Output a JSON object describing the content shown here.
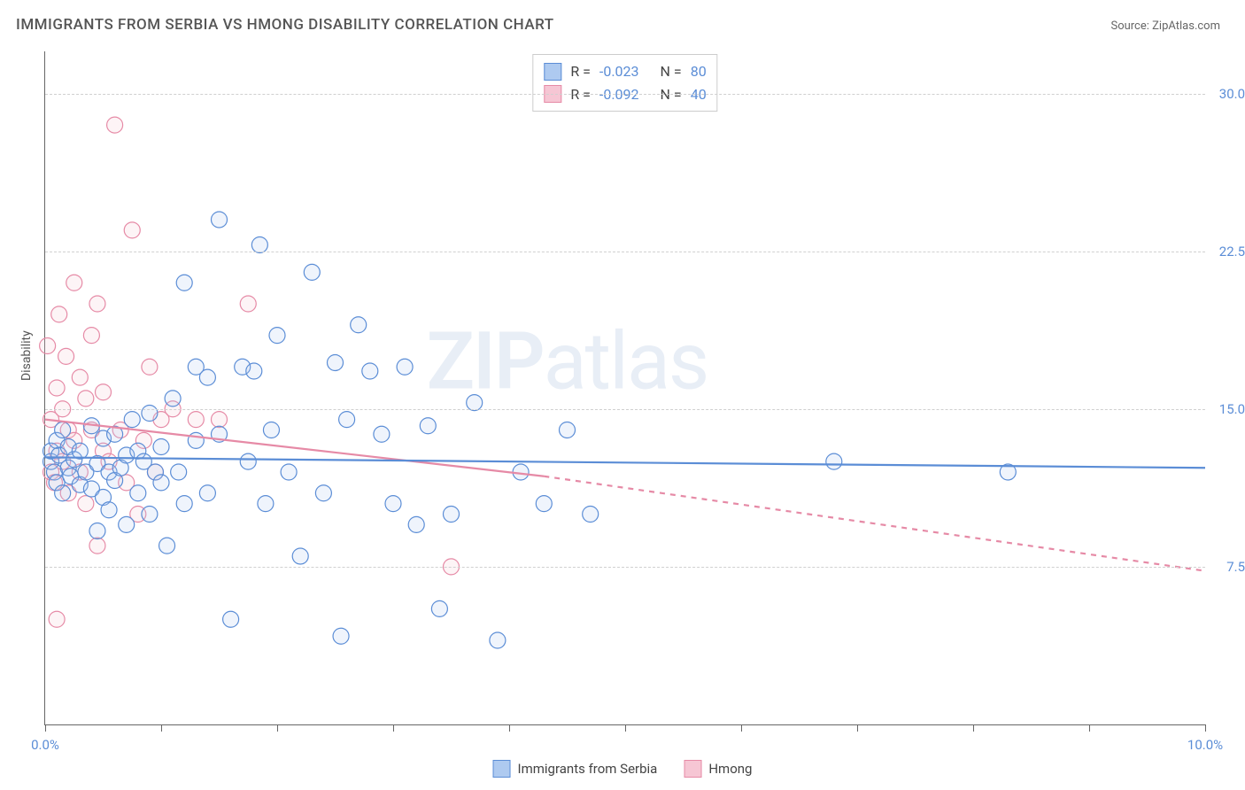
{
  "title": "IMMIGRANTS FROM SERBIA VS HMONG DISABILITY CORRELATION CHART",
  "source_prefix": "Source: ",
  "source_name": "ZipAtlas.com",
  "watermark_main": "ZIP",
  "watermark_sub": "atlas",
  "y_axis_label": "Disability",
  "chart": {
    "type": "scatter",
    "background_color": "#ffffff",
    "grid_color": "#d0d0d0",
    "axis_color": "#666666",
    "marker_radius": 9,
    "marker_stroke_width": 1.2,
    "marker_fill_opacity": 0.2,
    "line_width": 2.2,
    "xlim": [
      0.0,
      10.0
    ],
    "ylim": [
      0.0,
      32.0
    ],
    "ytick_labels": [
      "7.5%",
      "15.0%",
      "22.5%",
      "30.0%"
    ],
    "ytick_values": [
      7.5,
      15.0,
      22.5,
      30.0
    ],
    "xtick_labels_shown": {
      "0": "0.0%",
      "10": "10.0%"
    },
    "xtick_positions": [
      0,
      1,
      2,
      3,
      4,
      5,
      6,
      7,
      8,
      9,
      10
    ],
    "series": [
      {
        "name": "Immigrants from Serbia",
        "color_stroke": "#5b8dd6",
        "color_fill": "#aecaf0",
        "R": "-0.023",
        "N": "80",
        "regression": {
          "x1": 0.0,
          "y1": 12.7,
          "x2": 10.0,
          "y2": 12.2,
          "style": "solid"
        },
        "points": [
          [
            0.05,
            12.5
          ],
          [
            0.05,
            13.0
          ],
          [
            0.08,
            12.0
          ],
          [
            0.1,
            13.5
          ],
          [
            0.1,
            11.5
          ],
          [
            0.12,
            12.8
          ],
          [
            0.15,
            11.0
          ],
          [
            0.15,
            14.0
          ],
          [
            0.2,
            12.2
          ],
          [
            0.2,
            13.2
          ],
          [
            0.22,
            11.8
          ],
          [
            0.25,
            12.6
          ],
          [
            0.3,
            13.0
          ],
          [
            0.3,
            11.4
          ],
          [
            0.35,
            12.0
          ],
          [
            0.4,
            14.2
          ],
          [
            0.4,
            11.2
          ],
          [
            0.45,
            12.4
          ],
          [
            0.5,
            13.6
          ],
          [
            0.5,
            10.8
          ],
          [
            0.55,
            12.0
          ],
          [
            0.6,
            11.6
          ],
          [
            0.6,
            13.8
          ],
          [
            0.65,
            12.2
          ],
          [
            0.7,
            9.5
          ],
          [
            0.7,
            12.8
          ],
          [
            0.75,
            14.5
          ],
          [
            0.8,
            11.0
          ],
          [
            0.8,
            13.0
          ],
          [
            0.85,
            12.5
          ],
          [
            0.9,
            10.0
          ],
          [
            0.9,
            14.8
          ],
          [
            0.95,
            12.0
          ],
          [
            1.0,
            11.5
          ],
          [
            1.0,
            13.2
          ],
          [
            1.05,
            8.5
          ],
          [
            1.1,
            15.5
          ],
          [
            1.15,
            12.0
          ],
          [
            1.2,
            21.0
          ],
          [
            1.2,
            10.5
          ],
          [
            1.3,
            13.5
          ],
          [
            1.3,
            17.0
          ],
          [
            1.4,
            16.5
          ],
          [
            1.4,
            11.0
          ],
          [
            1.5,
            13.8
          ],
          [
            1.5,
            24.0
          ],
          [
            1.6,
            5.0
          ],
          [
            1.7,
            17.0
          ],
          [
            1.75,
            12.5
          ],
          [
            1.8,
            16.8
          ],
          [
            1.85,
            22.8
          ],
          [
            1.9,
            10.5
          ],
          [
            1.95,
            14.0
          ],
          [
            2.0,
            18.5
          ],
          [
            2.1,
            12.0
          ],
          [
            2.2,
            8.0
          ],
          [
            2.3,
            21.5
          ],
          [
            2.4,
            11.0
          ],
          [
            2.5,
            17.2
          ],
          [
            2.55,
            4.2
          ],
          [
            2.6,
            14.5
          ],
          [
            2.7,
            19.0
          ],
          [
            2.8,
            16.8
          ],
          [
            2.9,
            13.8
          ],
          [
            3.0,
            10.5
          ],
          [
            3.1,
            17.0
          ],
          [
            3.2,
            9.5
          ],
          [
            3.3,
            14.2
          ],
          [
            3.4,
            5.5
          ],
          [
            3.5,
            10.0
          ],
          [
            3.7,
            15.3
          ],
          [
            3.9,
            4.0
          ],
          [
            4.1,
            12.0
          ],
          [
            4.3,
            10.5
          ],
          [
            4.5,
            14.0
          ],
          [
            4.7,
            10.0
          ],
          [
            6.8,
            12.5
          ],
          [
            8.3,
            12.0
          ],
          [
            0.45,
            9.2
          ],
          [
            0.55,
            10.2
          ]
        ]
      },
      {
        "name": "Hmong",
        "color_stroke": "#e68aa6",
        "color_fill": "#f6c6d4",
        "R": "-0.092",
        "N": "40",
        "regression_solid": {
          "x1": 0.0,
          "y1": 14.5,
          "x2": 4.3,
          "y2": 11.8,
          "style": "solid"
        },
        "regression_dashed": {
          "x1": 4.3,
          "y1": 11.8,
          "x2": 10.0,
          "y2": 7.3,
          "style": "dashed"
        },
        "points": [
          [
            0.02,
            18.0
          ],
          [
            0.05,
            12.0
          ],
          [
            0.05,
            14.5
          ],
          [
            0.08,
            11.5
          ],
          [
            0.1,
            16.0
          ],
          [
            0.1,
            13.0
          ],
          [
            0.12,
            19.5
          ],
          [
            0.15,
            12.5
          ],
          [
            0.15,
            15.0
          ],
          [
            0.18,
            17.5
          ],
          [
            0.2,
            11.0
          ],
          [
            0.2,
            14.0
          ],
          [
            0.25,
            21.0
          ],
          [
            0.25,
            13.5
          ],
          [
            0.3,
            16.5
          ],
          [
            0.3,
            12.0
          ],
          [
            0.35,
            15.5
          ],
          [
            0.35,
            10.5
          ],
          [
            0.4,
            14.0
          ],
          [
            0.4,
            18.5
          ],
          [
            0.45,
            20.0
          ],
          [
            0.5,
            13.0
          ],
          [
            0.5,
            15.8
          ],
          [
            0.55,
            12.5
          ],
          [
            0.6,
            28.5
          ],
          [
            0.65,
            14.0
          ],
          [
            0.7,
            11.5
          ],
          [
            0.75,
            23.5
          ],
          [
            0.8,
            10.0
          ],
          [
            0.85,
            13.5
          ],
          [
            0.9,
            17.0
          ],
          [
            0.95,
            12.0
          ],
          [
            1.0,
            14.5
          ],
          [
            1.1,
            15.0
          ],
          [
            1.3,
            14.5
          ],
          [
            1.5,
            14.5
          ],
          [
            1.75,
            20.0
          ],
          [
            0.1,
            5.0
          ],
          [
            0.45,
            8.5
          ],
          [
            3.5,
            7.5
          ]
        ]
      }
    ]
  },
  "legend_bottom": [
    {
      "label": "Immigrants from Serbia",
      "fill": "#aecaf0",
      "stroke": "#5b8dd6"
    },
    {
      "label": "Hmong",
      "fill": "#f6c6d4",
      "stroke": "#e68aa6"
    }
  ]
}
